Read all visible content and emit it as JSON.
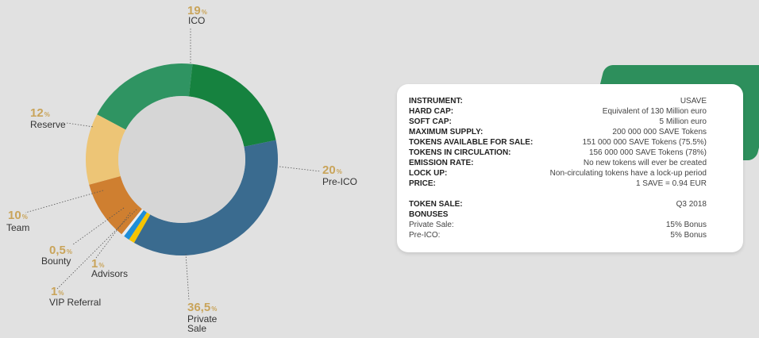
{
  "chart_data": {
    "type": "pie",
    "donut": true,
    "percent_symbol": "%",
    "slices": [
      {
        "name": "ICO",
        "label_lines": [
          "ICO"
        ],
        "value": 19,
        "value_text": "19",
        "color": "#2f9462"
      },
      {
        "name": "Pre-ICO",
        "label_lines": [
          "Pre-ICO"
        ],
        "value": 20,
        "value_text": "20",
        "color": "#16823f"
      },
      {
        "name": "Private Sale",
        "label_lines": [
          "Private",
          "Sale"
        ],
        "value": 36.5,
        "value_text": "36,5",
        "color": "#3a6b8f"
      },
      {
        "name": "VIP Referral",
        "label_lines": [
          "VIP Referral"
        ],
        "value": 1,
        "value_text": "1",
        "color": "#f5c400"
      },
      {
        "name": "Advisors",
        "label_lines": [
          "Advisors"
        ],
        "value": 1,
        "value_text": "1",
        "color": "#1e8ed8"
      },
      {
        "name": "Bounty",
        "label_lines": [
          "Bounty"
        ],
        "value": 0.5,
        "value_text": "0,5",
        "color": "#e8eef3"
      },
      {
        "name": "Team",
        "label_lines": [
          "Team"
        ],
        "value": 10,
        "value_text": "10",
        "color": "#cf7f30"
      },
      {
        "name": "Reserve",
        "label_lines": [
          "Reserve"
        ],
        "value": 12,
        "value_text": "12",
        "color": "#edc576"
      }
    ],
    "draw_slices": [
      {
        "name": "ICO",
        "value": 19,
        "color": "#2f9462"
      },
      {
        "name": "Pre-ICO",
        "value": 20,
        "color": "#16823f"
      },
      {
        "name": "Private Sale",
        "value": 36.5,
        "color": "#3a6b8f"
      },
      {
        "name": "VIP Referral",
        "value": 1,
        "color": "#f5c400"
      },
      {
        "name": "Advisors",
        "value": 1,
        "color": "#1e8ed8"
      },
      {
        "name": "Bounty",
        "value": 0.5,
        "color": "#e8eef3"
      },
      {
        "name": "Team",
        "value": 10,
        "color": "#cf7f30"
      },
      {
        "name": "Reserve",
        "value": 12,
        "color": "#edc576"
      }
    ]
  },
  "info_card": {
    "rows": [
      {
        "key": "INSTRUMENT:",
        "value": "USAVE"
      },
      {
        "key": "HARD CAP:",
        "value": "Equivalent of 130 Million euro"
      },
      {
        "key": "SOFT CAP:",
        "value": "5 Million euro"
      },
      {
        "key": "MAXIMUM SUPPLY:",
        "value": "200 000 000 SAVE Tokens"
      },
      {
        "key": "TOKENS AVAILABLE FOR SALE:",
        "value": "151 000 000 SAVE Tokens (75.5%)"
      },
      {
        "key": "TOKENS IN CIRCULATION:",
        "value": "156 000 000 SAVE Tokens (78%)"
      },
      {
        "key": "EMISSION RATE:",
        "value": "No new tokens will ever be created"
      },
      {
        "key": "LOCK UP:",
        "value": "Non-circulating tokens have a lock-up period"
      },
      {
        "key": "PRICE:",
        "value": "1 SAVE = 0.94 EUR"
      }
    ],
    "token_sale": {
      "key": "TOKEN SALE:",
      "value": "Q3 2018"
    },
    "bonuses_title": "BONUSES",
    "bonuses": [
      {
        "key": "Private Sale:",
        "value": "15% Bonus"
      },
      {
        "key": "Pre-ICO:",
        "value": "5% Bonus"
      }
    ],
    "accent_color": "#2d8f5c"
  }
}
